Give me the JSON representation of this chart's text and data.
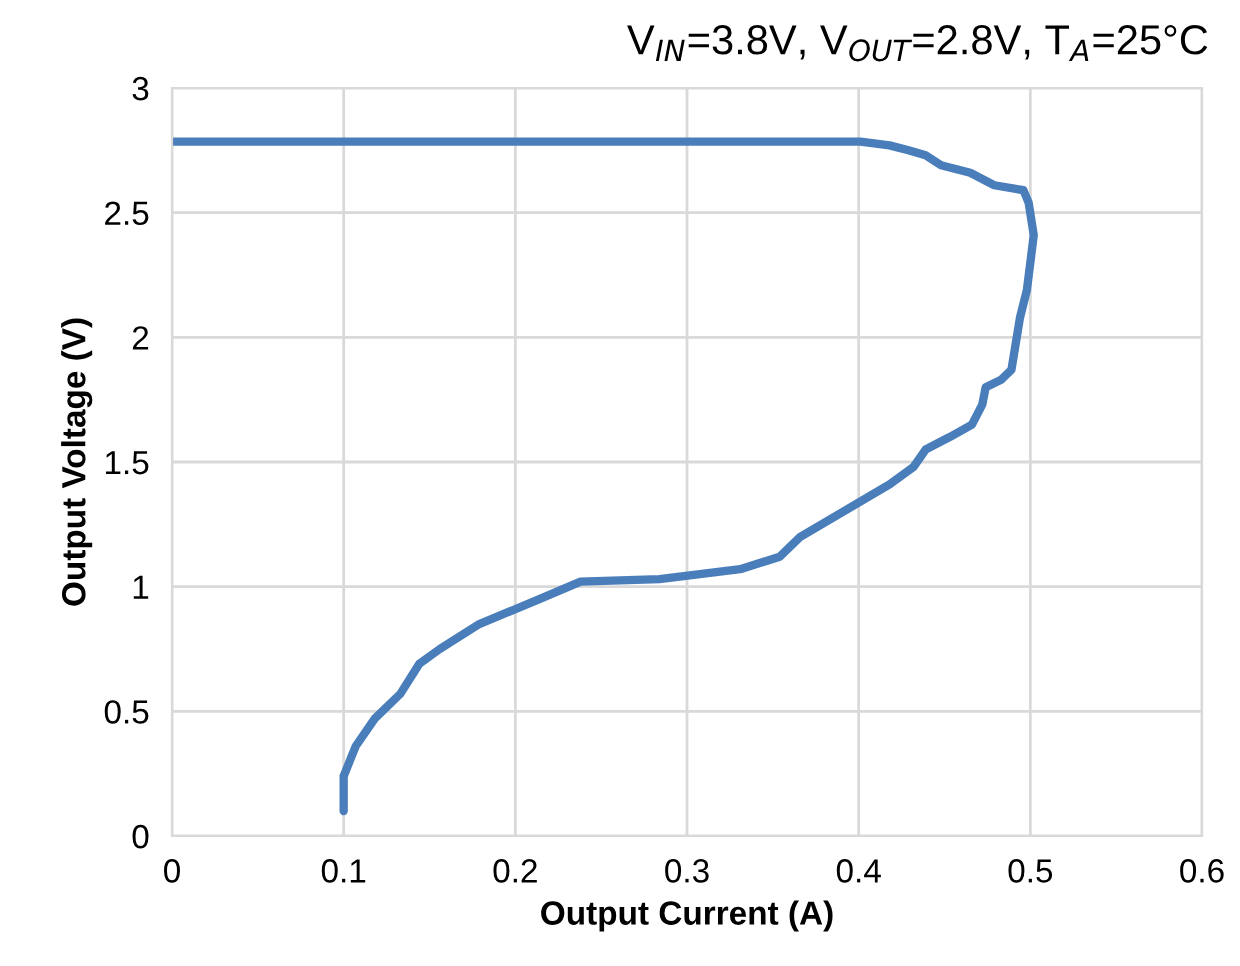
{
  "chart_data": {
    "type": "line",
    "title": "V$_{IN}$=3.8V, V$_{OUT}$=2.8V, T$_{A}$=25°C",
    "xlabel": "Output Current (A)",
    "ylabel": "Output Voltage (V)",
    "xlim": [
      0,
      0.6
    ],
    "ylim": [
      0,
      3
    ],
    "xticks": [
      0,
      0.1,
      0.2,
      0.3,
      0.4,
      0.5,
      0.6
    ],
    "yticks": [
      0,
      0.5,
      1,
      1.5,
      2,
      2.5,
      3
    ],
    "grid": true,
    "marker": "none",
    "line_style": "solid",
    "legend": false,
    "series": [
      {
        "color": "#4a7ebb",
        "x": [
          0,
          0.401,
          0.418,
          0.429,
          0.439,
          0.448,
          0.465,
          0.479,
          0.496,
          0.499,
          0.502,
          0.498,
          0.494,
          0.489,
          0.483,
          0.474,
          0.472,
          0.466,
          0.453,
          0.439,
          0.432,
          0.418,
          0.366,
          0.354,
          0.331,
          0.284,
          0.238,
          0.214,
          0.179,
          0.156,
          0.144,
          0.133,
          0.118,
          0.107,
          0.1,
          0.1
        ],
        "values": [
          2.785,
          2.785,
          2.77,
          2.75,
          2.73,
          2.69,
          2.66,
          2.61,
          2.59,
          2.54,
          2.41,
          2.19,
          2.08,
          1.87,
          1.83,
          1.8,
          1.73,
          1.65,
          1.6,
          1.55,
          1.48,
          1.41,
          1.2,
          1.12,
          1.07,
          1.03,
          1.02,
          0.95,
          0.85,
          0.75,
          0.69,
          0.57,
          0.47,
          0.36,
          0.24,
          0.1
        ]
      }
    ]
  }
}
